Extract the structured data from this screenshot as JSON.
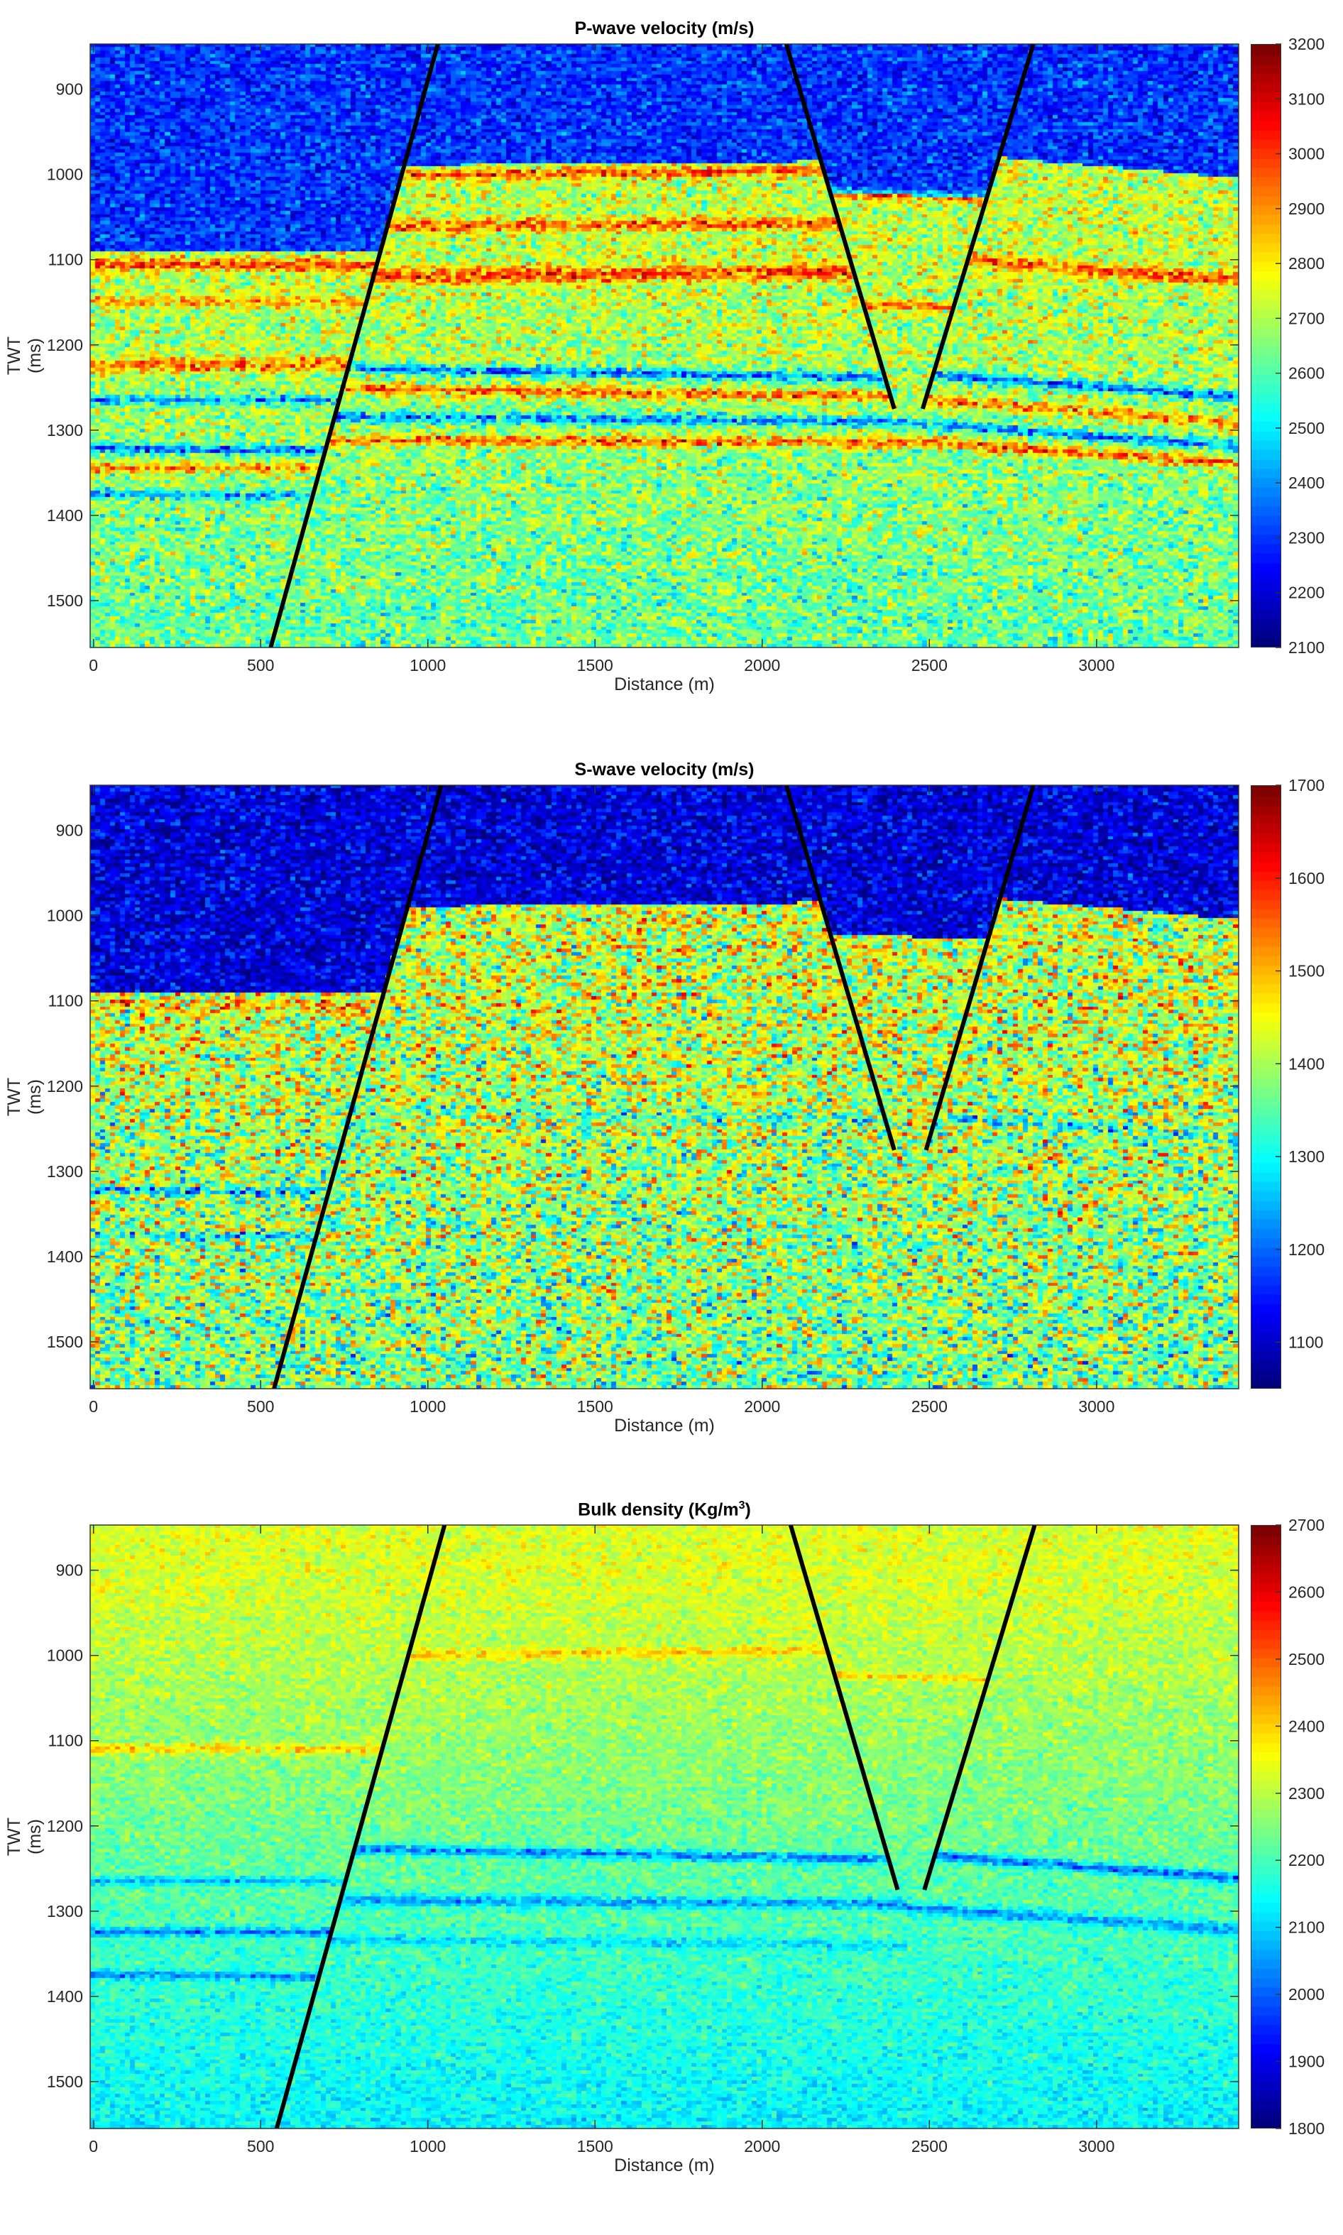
{
  "chart_data": [
    {
      "type": "heatmap",
      "title": "P-wave velocity (m/s)",
      "title_main": "P-wave velocity (m/s)",
      "xlabel": "Distance (m)",
      "ylabel": "TWT (ms)",
      "xlim": [
        -10,
        3425
      ],
      "ylim": [
        847,
        1555
      ],
      "xticks": [
        0,
        500,
        1000,
        1500,
        2000,
        2500,
        3000
      ],
      "yticks": [
        900,
        1000,
        1100,
        1200,
        1300,
        1400,
        1500
      ],
      "colormap": "jet",
      "clim": [
        2100,
        3200
      ],
      "cticks": [
        2100,
        2200,
        2300,
        2400,
        2500,
        2600,
        2700,
        2800,
        2900,
        3000,
        3100,
        3200
      ],
      "model": {
        "above_top": {
          "value": 2290,
          "std": 90
        },
        "below_top": {
          "value_at": [
            [
              1100,
              2720
            ],
            [
              1555,
              2620
            ]
          ],
          "std": 130
        },
        "top_surface": {
          "left": [
            [
              0,
              1090
            ],
            [
              800,
              1090
            ]
          ],
          "middle": [
            [
              850,
              990
            ],
            [
              2100,
              985
            ]
          ],
          "wedge": [
            [
              2100,
              1020
            ],
            [
              2800,
              1030
            ]
          ],
          "right": [
            [
              2700,
              980
            ],
            [
              3425,
              1005
            ]
          ]
        },
        "horizons": [
          {
            "blocks": [
              "left"
            ],
            "x": [
              0,
              800
            ],
            "t": [
              1105,
              1108
            ],
            "dv": 300,
            "w": 7
          },
          {
            "blocks": [
              "left"
            ],
            "x": [
              0,
              800
            ],
            "t": [
              1150,
              1150
            ],
            "dv": 200,
            "w": 6
          },
          {
            "blocks": [
              "left"
            ],
            "x": [
              0,
              800
            ],
            "t": [
              1225,
              1222
            ],
            "dv": 250,
            "w": 9
          },
          {
            "blocks": [
              "left"
            ],
            "x": [
              0,
              800
            ],
            "t": [
              1265,
              1265
            ],
            "dv": -280,
            "w": 5
          },
          {
            "blocks": [
              "left"
            ],
            "x": [
              0,
              800
            ],
            "t": [
              1322,
              1325
            ],
            "dv": -350,
            "w": 5
          },
          {
            "blocks": [
              "left"
            ],
            "x": [
              0,
              800
            ],
            "t": [
              1345,
              1345
            ],
            "dv": 250,
            "w": 6
          },
          {
            "blocks": [
              "left"
            ],
            "x": [
              0,
              800
            ],
            "t": [
              1375,
              1378
            ],
            "dv": -280,
            "w": 5
          },
          {
            "blocks": [
              "middle"
            ],
            "x": [
              850,
              2200
            ],
            "t": [
              1002,
              995
            ],
            "dv": 280,
            "w": 6
          },
          {
            "blocks": [
              "middle"
            ],
            "x": [
              850,
              2200
            ],
            "t": [
              1062,
              1058
            ],
            "dv": 250,
            "w": 7
          },
          {
            "blocks": [
              "middle"
            ],
            "x": [
              850,
              2200
            ],
            "t": [
              1120,
              1115
            ],
            "dv": 300,
            "w": 9
          },
          {
            "blocks": [
              "middle"
            ],
            "x": [
              850,
              2400
            ],
            "t": [
              1228,
              1240
            ],
            "dv": -350,
            "w": 6
          },
          {
            "blocks": [
              "middle"
            ],
            "x": [
              850,
              2400
            ],
            "t": [
              1252,
              1262
            ],
            "dv": 280,
            "w": 6
          },
          {
            "blocks": [
              "middle"
            ],
            "x": [
              850,
              2400
            ],
            "t": [
              1285,
              1290
            ],
            "dv": -300,
            "w": 6
          },
          {
            "blocks": [
              "middle"
            ],
            "x": [
              850,
              2400
            ],
            "t": [
              1312,
              1315
            ],
            "dv": 300,
            "w": 6
          },
          {
            "blocks": [
              "wedge"
            ],
            "x": [
              2100,
              2800
            ],
            "t": [
              1022,
              1030
            ],
            "dv": 250,
            "w": 6
          },
          {
            "blocks": [
              "wedge"
            ],
            "x": [
              2100,
              2800
            ],
            "t": [
              1150,
              1160
            ],
            "dv": 250,
            "w": 6
          },
          {
            "blocks": [
              "right"
            ],
            "x": [
              2400,
              3425
            ],
            "t": [
              1095,
              1125
            ],
            "dv": 280,
            "w": 8
          },
          {
            "blocks": [
              "right"
            ],
            "x": [
              2400,
              3425
            ],
            "t": [
              1232,
              1262
            ],
            "dv": -380,
            "w": 6
          },
          {
            "blocks": [
              "right"
            ],
            "x": [
              2400,
              3425
            ],
            "t": [
              1262,
              1292
            ],
            "dv": 250,
            "w": 7
          },
          {
            "blocks": [
              "right"
            ],
            "x": [
              2400,
              3425
            ],
            "t": [
              1290,
              1320
            ],
            "dv": -300,
            "w": 6
          },
          {
            "blocks": [
              "right"
            ],
            "x": [
              2400,
              3425
            ],
            "t": [
              1312,
              1340
            ],
            "dv": 300,
            "w": 6
          }
        ]
      },
      "faults": [
        [
          [
            1030,
            847
          ],
          [
            530,
            1555
          ]
        ],
        [
          [
            2072,
            847
          ],
          [
            2395,
            1275
          ]
        ],
        [
          [
            2811,
            847
          ],
          [
            2480,
            1275
          ]
        ]
      ]
    },
    {
      "type": "heatmap",
      "title": "S-wave velocity (m/s)",
      "title_main": "S-wave velocity (m/s)",
      "xlabel": "Distance (m)",
      "ylabel": "TWT (ms)",
      "xlim": [
        -10,
        3425
      ],
      "ylim": [
        847,
        1555
      ],
      "xticks": [
        0,
        500,
        1000,
        1500,
        2000,
        2500,
        3000
      ],
      "yticks": [
        900,
        1000,
        1100,
        1200,
        1300,
        1400,
        1500
      ],
      "colormap": "jet",
      "clim": [
        1050,
        1700
      ],
      "cticks": [
        1100,
        1200,
        1300,
        1400,
        1500,
        1600,
        1700
      ],
      "model": {
        "above_top": {
          "value": 1110,
          "std": 60
        },
        "below_top": {
          "value_at": [
            [
              1100,
              1420
            ],
            [
              1555,
              1370
            ]
          ],
          "std": 120
        },
        "top_surface": {
          "left": [
            [
              0,
              1090
            ],
            [
              800,
              1090
            ]
          ],
          "middle": [
            [
              850,
              990
            ],
            [
              2100,
              985
            ]
          ],
          "wedge": [
            [
              2100,
              1020
            ],
            [
              2800,
              1030
            ]
          ],
          "right": [
            [
              2700,
              980
            ],
            [
              3425,
              1005
            ]
          ]
        },
        "horizons": [
          {
            "blocks": [
              "left"
            ],
            "x": [
              0,
              800
            ],
            "t": [
              1105,
              1108
            ],
            "dv": 80,
            "w": 7
          },
          {
            "blocks": [
              "left"
            ],
            "x": [
              0,
              800
            ],
            "t": [
              1322,
              1325
            ],
            "dv": -150,
            "w": 5
          },
          {
            "blocks": [
              "left"
            ],
            "x": [
              0,
              800
            ],
            "t": [
              1375,
              1378
            ],
            "dv": -120,
            "w": 5
          },
          {
            "blocks": [
              "middle"
            ],
            "x": [
              850,
              2400
            ],
            "t": [
              1228,
              1240
            ],
            "dv": -80,
            "w": 6
          },
          {
            "blocks": [
              "right"
            ],
            "x": [
              2400,
              3425
            ],
            "t": [
              1232,
              1262
            ],
            "dv": -100,
            "w": 6
          }
        ]
      },
      "faults": [
        [
          [
            1040,
            847
          ],
          [
            540,
            1555
          ]
        ],
        [
          [
            2072,
            847
          ],
          [
            2395,
            1275
          ]
        ],
        [
          [
            2811,
            847
          ],
          [
            2490,
            1275
          ]
        ]
      ]
    },
    {
      "type": "heatmap",
      "title": "Bulk density (Kg/m3)",
      "title_main": "Bulk density (Kg/m",
      "title_sup": "3",
      "title_end": ")",
      "xlabel": "Distance (m)",
      "ylabel": "TWT (ms)",
      "xlim": [
        -10,
        3425
      ],
      "ylim": [
        847,
        1555
      ],
      "xticks": [
        0,
        500,
        1000,
        1500,
        2000,
        2500,
        3000
      ],
      "yticks": [
        900,
        1000,
        1100,
        1200,
        1300,
        1400,
        1500
      ],
      "colormap": "jet",
      "clim": [
        1800,
        2700
      ],
      "cticks": [
        1800,
        1900,
        2000,
        2100,
        2200,
        2300,
        2400,
        2500,
        2600,
        2700
      ],
      "model": {
        "above_top": {
          "value": 2330,
          "std": 45
        },
        "below_top": {
          "value_at": [
            [
              900,
              2330
            ],
            [
              1555,
              2130
            ]
          ],
          "std": 50
        },
        "top_surface": {
          "left": [
            [
              0,
              847
            ],
            [
              800,
              847
            ]
          ],
          "middle": [
            [
              850,
              847
            ],
            [
              2100,
              847
            ]
          ],
          "wedge": [
            [
              2100,
              847
            ],
            [
              2800,
              847
            ]
          ],
          "right": [
            [
              2700,
              847
            ],
            [
              3425,
              847
            ]
          ]
        },
        "horizons": [
          {
            "blocks": [
              "left"
            ],
            "x": [
              0,
              800
            ],
            "t": [
              1110,
              1110
            ],
            "dv": 160,
            "w": 6
          },
          {
            "blocks": [
              "left"
            ],
            "x": [
              0,
              800
            ],
            "t": [
              1265,
              1265
            ],
            "dv": -160,
            "w": 5
          },
          {
            "blocks": [
              "left"
            ],
            "x": [
              0,
              800
            ],
            "t": [
              1325,
              1325
            ],
            "dv": -190,
            "w": 5
          },
          {
            "blocks": [
              "left"
            ],
            "x": [
              0,
              800
            ],
            "t": [
              1375,
              1378
            ],
            "dv": -170,
            "w": 5
          },
          {
            "blocks": [
              "middle"
            ],
            "x": [
              850,
              2200
            ],
            "t": [
              1000,
              995
            ],
            "dv": 110,
            "w": 6
          },
          {
            "blocks": [
              "middle"
            ],
            "x": [
              850,
              2400
            ],
            "t": [
              1228,
              1240
            ],
            "dv": -220,
            "w": 6
          },
          {
            "blocks": [
              "middle"
            ],
            "x": [
              850,
              2400
            ],
            "t": [
              1288,
              1292
            ],
            "dv": -170,
            "w": 7
          },
          {
            "blocks": [
              "middle"
            ],
            "x": [
              850,
              2400
            ],
            "t": [
              1335,
              1340
            ],
            "dv": -100,
            "w": 6
          },
          {
            "blocks": [
              "wedge"
            ],
            "x": [
              2100,
              2800
            ],
            "t": [
              1022,
              1030
            ],
            "dv": 110,
            "w": 5
          },
          {
            "blocks": [
              "right"
            ],
            "x": [
              2400,
              3425
            ],
            "t": [
              1232,
              1262
            ],
            "dv": -240,
            "w": 6
          },
          {
            "blocks": [
              "right"
            ],
            "x": [
              2400,
              3425
            ],
            "t": [
              1295,
              1322
            ],
            "dv": -170,
            "w": 7
          }
        ]
      },
      "faults": [
        [
          [
            1050,
            847
          ],
          [
            548,
            1555
          ]
        ],
        [
          [
            2085,
            847
          ],
          [
            2405,
            1275
          ]
        ],
        [
          [
            2815,
            847
          ],
          [
            2485,
            1275
          ]
        ]
      ]
    }
  ]
}
